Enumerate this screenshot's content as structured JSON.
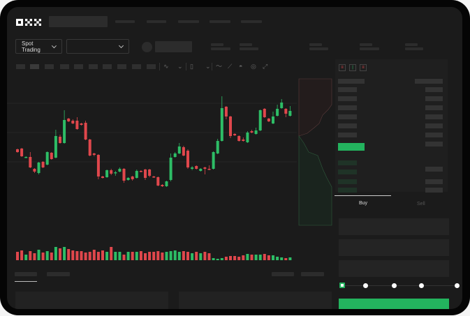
{
  "brand": {
    "logo": "OKX"
  },
  "colors": {
    "up": "#2dbd66",
    "down": "#e0474c",
    "accent": "#23b35e",
    "background": "#1b1b1b"
  },
  "header": {
    "market_selector": {
      "label": "Spot Trading",
      "icon": "chevron-down-icon"
    },
    "pair_selector": {
      "icon": "chevron-down-icon"
    }
  },
  "toolbar": {
    "icons": [
      "indicator-icon",
      "chevron-down-icon",
      "candle-type-icon",
      "chevron-down-icon",
      "line-icon",
      "draw-icon",
      "camera-icon",
      "settings-icon",
      "fullscreen-icon"
    ]
  },
  "orderbook": {
    "view_icons": [
      "orderbook-both-icon",
      "orderbook-bids-icon",
      "orderbook-asks-icon"
    ]
  },
  "order_form": {
    "tabs": [
      {
        "label": "Buy",
        "active": true
      },
      {
        "label": "Sell",
        "active": false
      }
    ],
    "leverage_slider": {
      "value": 0,
      "steps": 5
    }
  },
  "chart_data": {
    "type": "candlestick",
    "candles": [
      [
        96,
        92,
        97,
        91
      ],
      [
        97,
        86,
        98,
        85
      ],
      [
        84,
        85,
        86,
        84
      ],
      [
        85,
        70,
        92,
        69
      ],
      [
        68,
        64,
        69,
        62
      ],
      [
        62,
        77,
        78,
        60
      ],
      [
        78,
        70,
        79,
        69
      ],
      [
        74,
        92,
        93,
        73
      ],
      [
        91,
        82,
        92,
        81
      ],
      [
        84,
        115,
        124,
        83
      ],
      [
        114,
        105,
        117,
        104
      ],
      [
        105,
        138,
        152,
        104
      ],
      [
        140,
        136,
        141,
        135
      ],
      [
        137,
        133,
        139,
        132
      ],
      [
        137,
        125,
        142,
        124
      ],
      [
        133,
        131,
        134,
        130
      ],
      [
        134,
        110,
        137,
        109
      ],
      [
        110,
        87,
        111,
        86
      ],
      [
        90,
        88,
        91,
        86
      ],
      [
        88,
        57,
        89,
        53
      ],
      [
        57,
        55,
        58,
        54
      ],
      [
        56,
        66,
        67,
        55
      ],
      [
        66,
        61,
        68,
        59
      ],
      [
        62,
        63,
        65,
        58
      ],
      [
        64,
        68,
        70,
        63
      ],
      [
        68,
        51,
        69,
        48
      ],
      [
        52,
        55,
        56,
        51
      ],
      [
        57,
        53,
        58,
        51
      ],
      [
        55,
        65,
        67,
        54
      ],
      [
        65,
        64,
        66,
        63
      ],
      [
        67,
        55,
        68,
        52
      ],
      [
        67,
        58,
        68,
        56
      ],
      [
        57,
        56,
        58,
        55
      ],
      [
        56,
        44,
        57,
        43
      ],
      [
        45,
        43,
        46,
        42
      ],
      [
        43,
        50,
        51,
        42
      ],
      [
        52,
        84,
        90,
        50
      ],
      [
        85,
        90,
        92,
        84
      ],
      [
        90,
        100,
        105,
        89
      ],
      [
        99,
        87,
        101,
        86
      ],
      [
        94,
        70,
        96,
        68
      ],
      [
        68,
        70,
        72,
        66
      ],
      [
        72,
        68,
        73,
        67
      ],
      [
        65,
        68,
        69,
        64
      ],
      [
        70,
        68,
        71,
        60
      ],
      [
        68,
        67,
        73,
        66
      ],
      [
        68,
        92,
        93,
        67
      ],
      [
        90,
        108,
        111,
        89
      ],
      [
        108,
        155,
        172,
        107
      ],
      [
        157,
        143,
        158,
        139
      ],
      [
        143,
        115,
        144,
        112
      ],
      [
        118,
        116,
        119,
        115
      ],
      [
        115,
        108,
        116,
        107
      ],
      [
        110,
        108,
        113,
        107
      ],
      [
        106,
        120,
        122,
        105
      ],
      [
        122,
        120,
        124,
        119
      ],
      [
        118,
        123,
        127,
        117
      ],
      [
        123,
        152,
        153,
        122
      ],
      [
        154,
        142,
        155,
        141
      ],
      [
        140,
        136,
        141,
        135
      ],
      [
        133,
        143,
        150,
        132
      ],
      [
        144,
        154,
        160,
        143
      ],
      [
        155,
        163,
        168,
        154
      ],
      [
        154,
        147,
        155,
        142
      ],
      [
        144,
        151,
        158,
        143
      ]
    ],
    "volume": [
      12,
      14,
      8,
      13,
      10,
      15,
      11,
      13,
      11,
      19,
      17,
      19,
      16,
      14,
      13,
      13,
      11,
      12,
      15,
      12,
      14,
      12,
      19,
      12,
      12,
      8,
      12,
      12,
      12,
      13,
      10,
      12,
      12,
      13,
      11,
      12,
      13,
      14,
      12,
      13,
      12,
      10,
      12,
      10,
      12,
      10,
      3,
      2,
      3,
      5,
      6,
      6,
      5,
      7,
      9,
      8,
      8,
      8,
      9,
      7,
      7,
      5,
      4,
      3,
      4
    ],
    "grid": true
  }
}
